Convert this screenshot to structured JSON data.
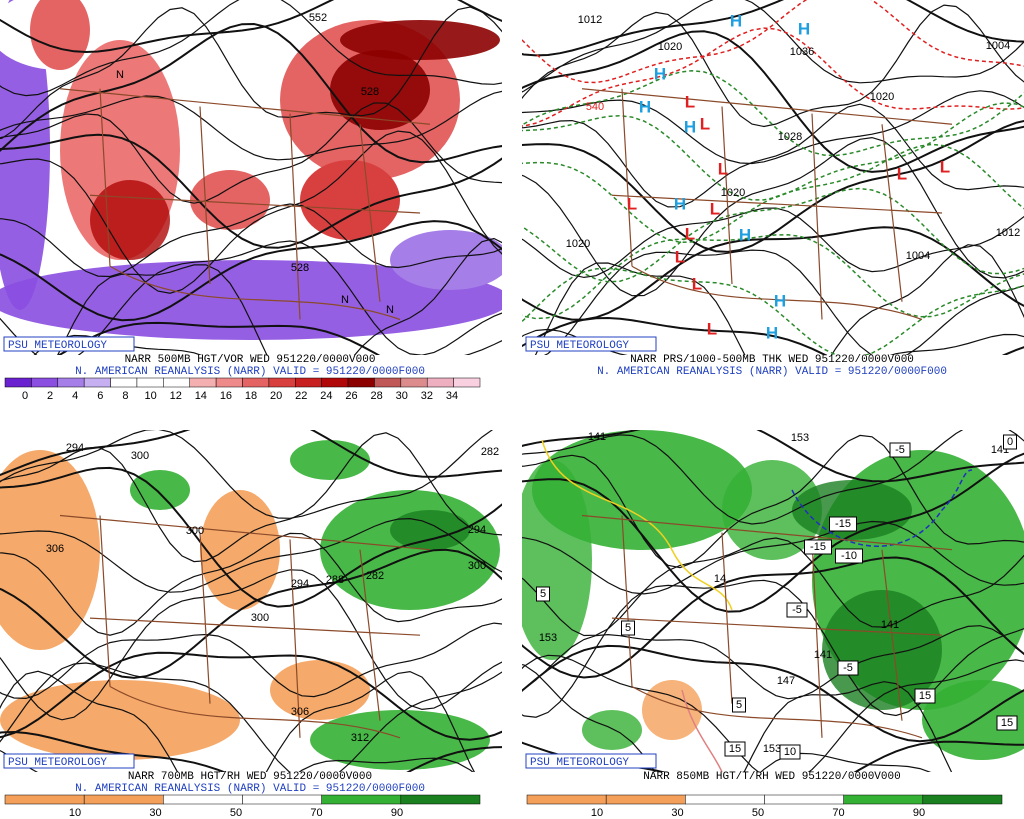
{
  "panels": [
    {
      "badge": "PSU METEOROLOGY",
      "line1": "NARR 500MB HGT/VOR WED 951220/0000V000",
      "line2": "N. AMERICAN REANALYSIS (NARR) VALID = 951220/0000F000",
      "colorbar": {
        "colors": [
          "#6a22d0",
          "#8a4ee0",
          "#a67ee8",
          "#c6b0f2",
          "#ffffff",
          "#ffffff",
          "#ffffff",
          "#f4b0b0",
          "#ee8a8a",
          "#e46464",
          "#d84040",
          "#c82020",
          "#b00808",
          "#8c0000",
          "#c05858",
          "#dc8c8c",
          "#eeb0c0",
          "#f8d0e0"
        ],
        "ticks": [
          0,
          2,
          4,
          6,
          8,
          10,
          12,
          14,
          16,
          18,
          20,
          22,
          24,
          26,
          28,
          30,
          32,
          34
        ]
      },
      "labels": [
        "552",
        "528",
        "528",
        "N",
        "N",
        "N"
      ]
    },
    {
      "badge": "PSU METEOROLOGY",
      "line1": "NARR PRS/1000-500MB THK WED 951220/0000V000",
      "line2": "N. AMERICAN REANALYSIS (NARR) VALID = 951220/0000F000",
      "labels": [
        1012,
        1020,
        1036,
        1004,
        1020,
        1028,
        1020,
        1020,
        1012,
        1004,
        540,
        "H",
        "H",
        "H",
        "H",
        "H",
        "H",
        "H",
        "H",
        "H",
        "L",
        "L",
        "L",
        "L",
        "L",
        "L",
        "L",
        "L",
        "L",
        "L",
        "L"
      ]
    },
    {
      "badge": "PSU METEOROLOGY",
      "line1": "NARR 700MB HGT/RH WED 951220/0000V000",
      "line2": "N. AMERICAN REANALYSIS (NARR) VALID = 951220/0000F000",
      "colorbar": {
        "colors": [
          "#f4a05a",
          "#f4a05a",
          "#ffffff",
          "#ffffff",
          "#34b034",
          "#1a8020"
        ],
        "ticks": [
          10,
          30,
          50,
          70,
          90
        ]
      },
      "labels": [
        294,
        300,
        306,
        300,
        294,
        288,
        282,
        294,
        300,
        300,
        306,
        312,
        282
      ]
    },
    {
      "badge": "PSU METEOROLOGY",
      "line1": "NARR 850MB HGT/T/RH WED 951220/0000V000",
      "colorbar": {
        "colors": [
          "#f4a05a",
          "#f4a05a",
          "#ffffff",
          "#ffffff",
          "#34b034",
          "#1a8020"
        ],
        "ticks": [
          10,
          30,
          50,
          70,
          90
        ]
      },
      "labels": [
        141,
        153,
        141,
        153,
        141,
        147,
        141,
        153,
        14,
        -5,
        -15,
        -15,
        -10,
        -5,
        -5,
        5,
        5,
        5,
        15,
        15,
        15,
        10,
        0
      ]
    }
  ]
}
